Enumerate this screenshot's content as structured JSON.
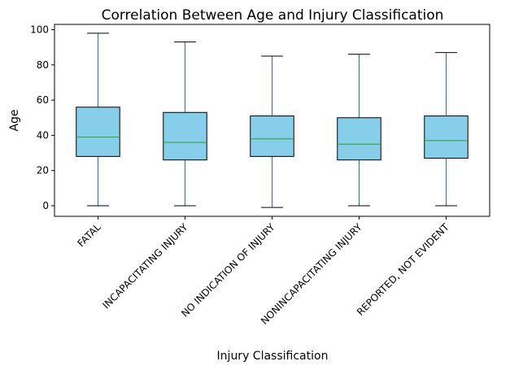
{
  "chart_data": {
    "type": "boxplot",
    "title": "Correlation Between Age and Injury Classification",
    "xlabel": "Injury Classification",
    "ylabel": "Age",
    "ylim": [
      -6,
      103
    ],
    "yticks": [
      0,
      20,
      40,
      60,
      80,
      100
    ],
    "grid": false,
    "box_color": "#87CEEB",
    "whisker_color": "#1f77b4",
    "median_color": "#2ca02c",
    "categories": [
      "FATAL",
      "INCAPACITATING INJURY",
      "NO INDICATION OF INJURY",
      "NONINCAPACITATING INJURY",
      "REPORTED, NOT EVIDENT"
    ],
    "boxes": [
      {
        "min": 0,
        "q1": 28,
        "median": 39,
        "q3": 56,
        "max": 98
      },
      {
        "min": 0,
        "q1": 26,
        "median": 36,
        "q3": 53,
        "max": 93
      },
      {
        "min": -1,
        "q1": 28,
        "median": 38,
        "q3": 51,
        "max": 85
      },
      {
        "min": 0,
        "q1": 26,
        "median": 35,
        "q3": 50,
        "max": 86
      },
      {
        "min": 0,
        "q1": 27,
        "median": 37,
        "q3": 51,
        "max": 87
      }
    ]
  }
}
